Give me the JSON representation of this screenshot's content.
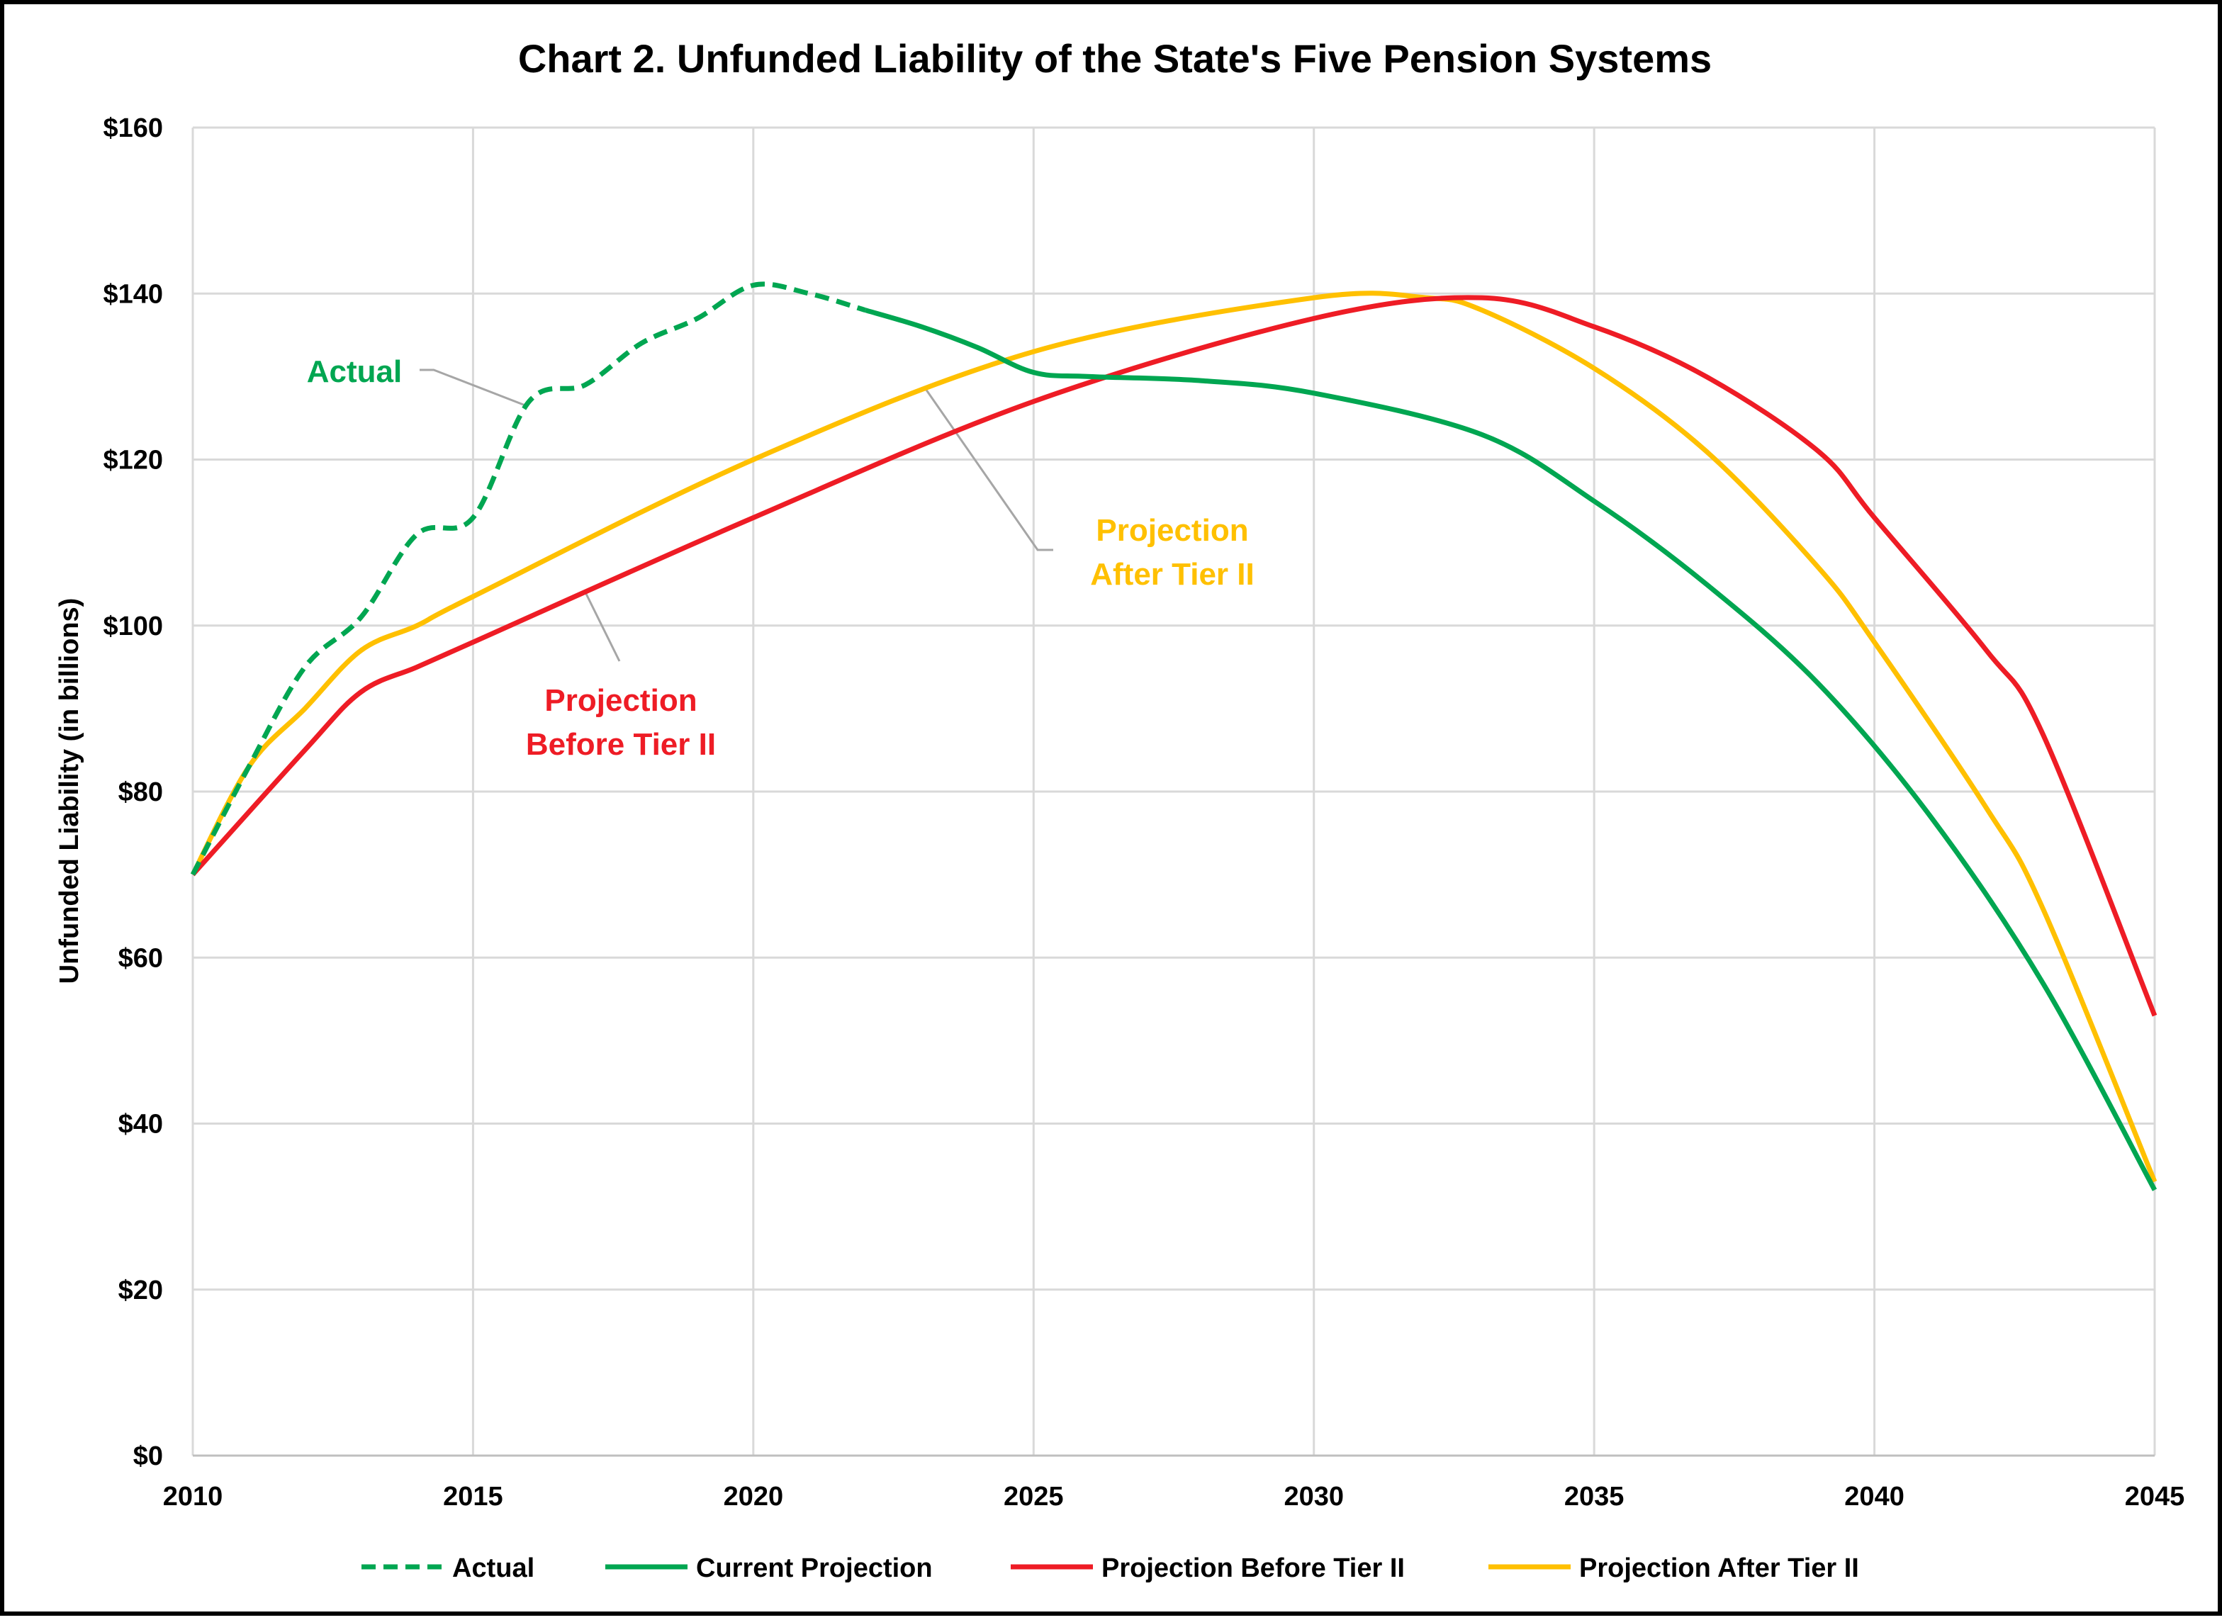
{
  "chart_data": {
    "type": "line",
    "title": "Chart 2. Unfunded Liability of the State's Five Pension Systems",
    "xlabel": "",
    "ylabel": "Unfunded Liability (in billions)",
    "xlim": [
      2010,
      2045
    ],
    "ylim": [
      0,
      160
    ],
    "x_ticks": [
      2010,
      2015,
      2020,
      2025,
      2030,
      2035,
      2040,
      2045
    ],
    "y_ticks": [
      0,
      20,
      40,
      60,
      80,
      100,
      120,
      140,
      160
    ],
    "y_tick_labels": [
      "$0",
      "$20",
      "$40",
      "$60",
      "$80",
      "$100",
      "$120",
      "$140",
      "$160"
    ],
    "grid": true,
    "legend_position": "bottom",
    "series": [
      {
        "name": "Actual",
        "color": "#00a651",
        "style": "dashed",
        "points": [
          [
            2010,
            70
          ],
          [
            2011,
            83
          ],
          [
            2012,
            95
          ],
          [
            2013,
            101
          ],
          [
            2014,
            111
          ],
          [
            2015,
            113
          ],
          [
            2016,
            127
          ],
          [
            2017,
            129
          ],
          [
            2018,
            134
          ],
          [
            2019,
            137
          ],
          [
            2020,
            141
          ],
          [
            2021,
            140
          ],
          [
            2022,
            138
          ]
        ]
      },
      {
        "name": "Current Projection",
        "color": "#00a651",
        "style": "solid",
        "points": [
          [
            2022,
            138
          ],
          [
            2023,
            136
          ],
          [
            2024,
            133.5
          ],
          [
            2025,
            130.5
          ],
          [
            2026,
            130
          ],
          [
            2028,
            129.5
          ],
          [
            2030,
            128
          ],
          [
            2033,
            123
          ],
          [
            2035,
            115
          ],
          [
            2037,
            105
          ],
          [
            2039,
            93
          ],
          [
            2041,
            77
          ],
          [
            2043,
            57
          ],
          [
            2045,
            32
          ]
        ]
      },
      {
        "name": "Projection Before Tier II",
        "color": "#ee1c25",
        "style": "solid",
        "points": [
          [
            2010,
            70
          ],
          [
            2012,
            85
          ],
          [
            2013,
            92
          ],
          [
            2014,
            95
          ],
          [
            2015,
            98
          ],
          [
            2020,
            113
          ],
          [
            2025,
            127
          ],
          [
            2030,
            137
          ],
          [
            2033,
            139.5
          ],
          [
            2035,
            136
          ],
          [
            2037,
            130
          ],
          [
            2039,
            121
          ],
          [
            2040,
            113
          ],
          [
            2042,
            97
          ],
          [
            2043,
            87
          ],
          [
            2045,
            53
          ]
        ]
      },
      {
        "name": "Projection After Tier II",
        "color": "#ffc000",
        "style": "solid",
        "points": [
          [
            2010,
            70
          ],
          [
            2011,
            83
          ],
          [
            2012,
            90
          ],
          [
            2013,
            97
          ],
          [
            2014,
            100
          ],
          [
            2015,
            103.5
          ],
          [
            2020,
            120
          ],
          [
            2025,
            133
          ],
          [
            2030,
            139.5
          ],
          [
            2032,
            139.5
          ],
          [
            2033,
            138
          ],
          [
            2035,
            131
          ],
          [
            2037,
            121
          ],
          [
            2039,
            107
          ],
          [
            2040,
            98
          ],
          [
            2042,
            78
          ],
          [
            2043,
            66
          ],
          [
            2045,
            33
          ]
        ]
      }
    ],
    "annotations": [
      {
        "text": "Actual",
        "color": "#00a651"
      },
      {
        "text": "Projection\nAfter Tier II",
        "color": "#ffc000"
      },
      {
        "text": "Projection\nBefore Tier II",
        "color": "#ee1c25"
      }
    ]
  }
}
